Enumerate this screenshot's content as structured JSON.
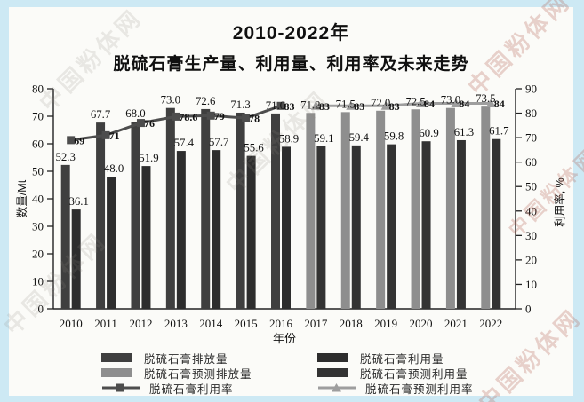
{
  "watermark": {
    "text": "中国粉体网"
  },
  "title": {
    "line1": "2010-2022年",
    "line2": "脱硫石膏生产量、利用量、利用率及未来走势"
  },
  "chart_data": {
    "type": "combo bar+line",
    "title": "2010-2022年 脱硫石膏生产量、利用量、利用率及未来走势",
    "categories": [
      "2010",
      "2011",
      "2012",
      "2013",
      "2014",
      "2015",
      "2016",
      "2017",
      "2018",
      "2019",
      "2020",
      "2021",
      "2022"
    ],
    "xlabel": "年份",
    "left_axis": {
      "label": "数量/Mt",
      "min": 0,
      "max": 80,
      "step": 10
    },
    "right_axis": {
      "label": "利用率, %",
      "min": 0,
      "max": 90,
      "step": 10
    },
    "grid": false,
    "legend_position": "bottom",
    "series": [
      {
        "name": "脱硫石膏排放量",
        "type": "bar",
        "slot": "left",
        "color": "#3f3f3f",
        "values": [
          52.3,
          67.7,
          68.0,
          73.0,
          72.6,
          71.3,
          71.0,
          null,
          null,
          null,
          null,
          null,
          null
        ],
        "labels": [
          "52.3",
          "67.7",
          "68.0",
          "73.0",
          "72.6",
          "71.3",
          "71.0",
          null,
          null,
          null,
          null,
          null,
          null
        ]
      },
      {
        "name": "脱硫石膏利用量",
        "type": "bar",
        "slot": "right",
        "color": "#2d2d2d",
        "values": [
          36.1,
          48.0,
          51.9,
          57.4,
          57.7,
          55.6,
          58.9,
          null,
          null,
          null,
          null,
          null,
          null
        ],
        "labels": [
          "36.1",
          "48.0",
          "51.9",
          "57.4",
          "57.7",
          "55.6",
          "58.9",
          null,
          null,
          null,
          null,
          null,
          null
        ]
      },
      {
        "name": "脱硫石膏预测排放量",
        "type": "bar",
        "slot": "left",
        "color": "#8e8e8e",
        "values": [
          null,
          null,
          null,
          null,
          null,
          null,
          null,
          71.2,
          71.5,
          72.0,
          72.5,
          73.0,
          73.5
        ],
        "labels": [
          null,
          null,
          null,
          null,
          null,
          null,
          null,
          "71.2",
          "71.5",
          "72.0",
          "72.5",
          "73.0",
          "73.5"
        ]
      },
      {
        "name": "脱硫石膏预测利用量",
        "type": "bar",
        "slot": "right",
        "color": "#333333",
        "values": [
          null,
          null,
          null,
          null,
          null,
          null,
          null,
          59.1,
          59.4,
          59.8,
          60.9,
          61.3,
          61.7
        ],
        "labels": [
          null,
          null,
          null,
          null,
          null,
          null,
          null,
          "59.1",
          "59.4",
          "59.8",
          "60.9",
          "61.3",
          "61.7"
        ]
      },
      {
        "name": "脱硫石膏利用率",
        "type": "line",
        "marker": "square",
        "axis": "right",
        "color": "#4d4d4d",
        "values": [
          69,
          71,
          76,
          78.6,
          79,
          78,
          83,
          null,
          null,
          null,
          null,
          null,
          null
        ],
        "labels": [
          "69",
          "71",
          "76",
          "78.6",
          "79",
          "78",
          "83",
          null,
          null,
          null,
          null,
          null,
          null
        ]
      },
      {
        "name": "脱硫石膏预测利用率",
        "type": "line",
        "marker": "triangle",
        "axis": "right",
        "color": "#9e9e9e",
        "values": [
          null,
          null,
          null,
          null,
          null,
          null,
          null,
          83,
          83,
          83,
          84,
          84,
          84
        ],
        "labels": [
          null,
          null,
          null,
          null,
          null,
          null,
          null,
          "83",
          "83",
          "83",
          "84",
          "84",
          "84"
        ]
      }
    ]
  }
}
